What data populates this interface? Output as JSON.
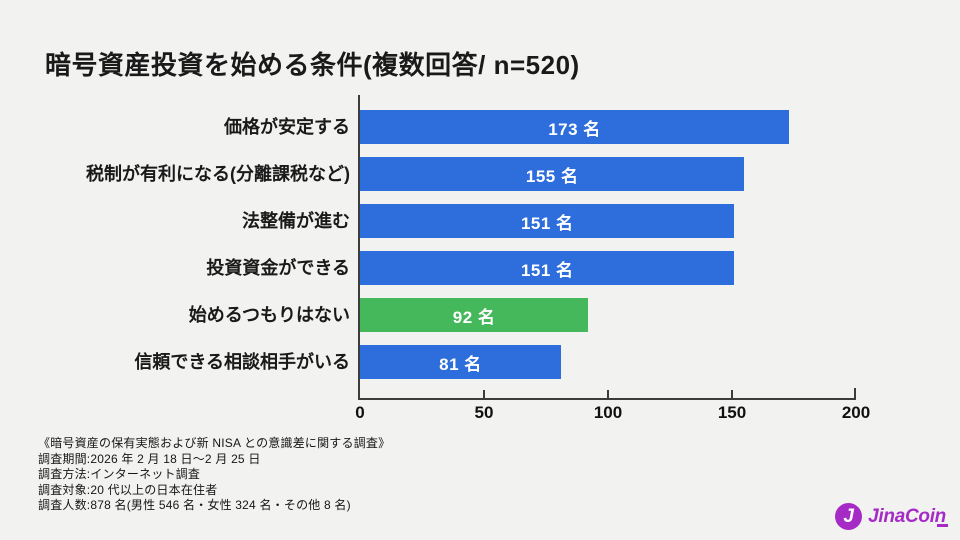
{
  "title": "暗号資産投資を始める条件(複数回答/ n=520)",
  "chart_data": {
    "type": "bar",
    "orientation": "horizontal",
    "title": "暗号資産投資を始める条件(複数回答/ n=520)",
    "categories": [
      "価格が安定する",
      "税制が有利になる(分離課税など)",
      "法整備が進む",
      "投資資金ができる",
      "始めるつもりはない",
      "信頼できる相談相手がいる"
    ],
    "values": [
      173,
      155,
      151,
      151,
      92,
      81
    ],
    "xlabel": "",
    "ylabel": "",
    "xlim": [
      0,
      200
    ],
    "xticks": [
      "0",
      "50",
      "100",
      "150",
      "200"
    ],
    "grid": "off",
    "legend": "none",
    "colors": {
      "default_bar": "#2d6ddc",
      "highlight_bar": "#44b85a"
    },
    "items": [
      {
        "label": "価格が安定する",
        "value": 173,
        "value_label": "173 名",
        "color": "#2d6ddc"
      },
      {
        "label": "税制が有利になる(分離課税など)",
        "value": 155,
        "value_label": "155 名",
        "color": "#2d6ddc"
      },
      {
        "label": "法整備が進む",
        "value": 151,
        "value_label": "151 名",
        "color": "#2d6ddc"
      },
      {
        "label": "投資資金ができる",
        "value": 151,
        "value_label": "151 名",
        "color": "#2d6ddc"
      },
      {
        "label": "始めるつもりはない",
        "value": 92,
        "value_label": "92 名",
        "color": "#44b85a"
      },
      {
        "label": "信頼できる相談相手がいる",
        "value": 81,
        "value_label": "81 名",
        "color": "#2d6ddc"
      }
    ]
  },
  "footer": {
    "lines": [
      "《暗号資産の保有実態および新 NISA との意識差に関する調査》",
      "調査期間:2026 年 2 月 18 日〜2 月 25 日",
      "調査方法:インターネット調査",
      "調査対象:20 代以上の日本在住者",
      "調査人数:878 名(男性 546 名・女性 324 名・その他 8 名)"
    ]
  },
  "logo": {
    "text": "JinaCoin",
    "icon_letter": "J",
    "color": "#a62bc6"
  }
}
